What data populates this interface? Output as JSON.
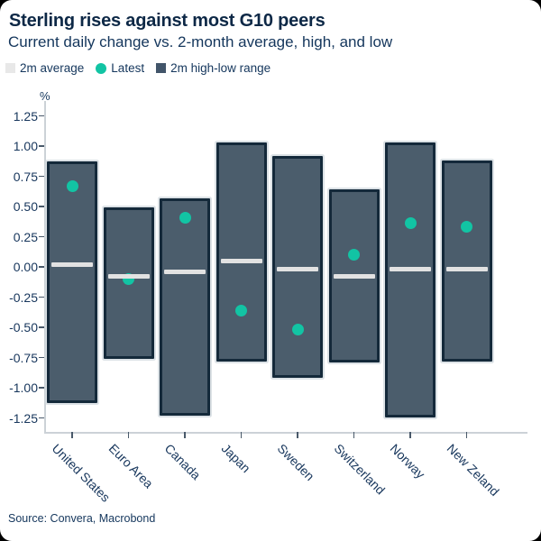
{
  "header": {
    "title": "Sterling rises against most G10 peers",
    "subtitle": "Current daily change vs. 2-month average, high, and low"
  },
  "legend": {
    "items": [
      {
        "label": "2m average",
        "swatch": "square",
        "color": "#e8e8e8"
      },
      {
        "label": "Latest",
        "swatch": "circle",
        "color": "#12c4a4"
      },
      {
        "label": "2m high-low range",
        "swatch": "square",
        "color": "#42556a"
      }
    ]
  },
  "axis": {
    "unit_label": "%",
    "yticks": [
      "1.25",
      "1.00",
      "0.75",
      "0.50",
      "0.25",
      "0.00",
      "-0.25",
      "-0.50",
      "-0.75",
      "-1.00",
      "-1.25"
    ]
  },
  "source": "Source: Convera, Macrobond",
  "chart_data": {
    "type": "bar",
    "title": "Sterling rises against most G10 peers",
    "subtitle": "Current daily change vs. 2-month average, high, and low",
    "ylabel": "%",
    "ylim": [
      -1.25,
      1.25
    ],
    "ytick_step": 0.25,
    "grid": false,
    "legend_position": "top",
    "categories": [
      "United States",
      "Euro Area",
      "Canada",
      "Japan",
      "Sweden",
      "Switzerland",
      "Norway",
      "New Zeland"
    ],
    "series": [
      {
        "name": "2m high-low range",
        "role": "range",
        "high": [
          0.87,
          0.49,
          0.57,
          1.03,
          0.92,
          0.64,
          1.03,
          0.88
        ],
        "low": [
          -1.13,
          -0.76,
          -1.23,
          -0.78,
          -0.92,
          -0.79,
          -1.25,
          -0.78
        ]
      },
      {
        "name": "2m average",
        "role": "tick-line",
        "values": [
          0.02,
          -0.08,
          -0.04,
          0.05,
          -0.02,
          -0.08,
          -0.02,
          -0.02
        ]
      },
      {
        "name": "Latest",
        "role": "point",
        "values": [
          0.67,
          -0.1,
          0.41,
          -0.36,
          -0.52,
          0.1,
          0.36,
          0.33
        ]
      }
    ]
  },
  "colors": {
    "bar_fill": "#4b5d6c",
    "bar_border": "#14293a",
    "average_line": "#e2e2e2",
    "latest_dot": "#12c4a4",
    "text": "#14365c",
    "title_text": "#0d2846",
    "axis_line": "#ccd2d7",
    "tick_mark": "#49596a",
    "background": "#ffffff"
  }
}
